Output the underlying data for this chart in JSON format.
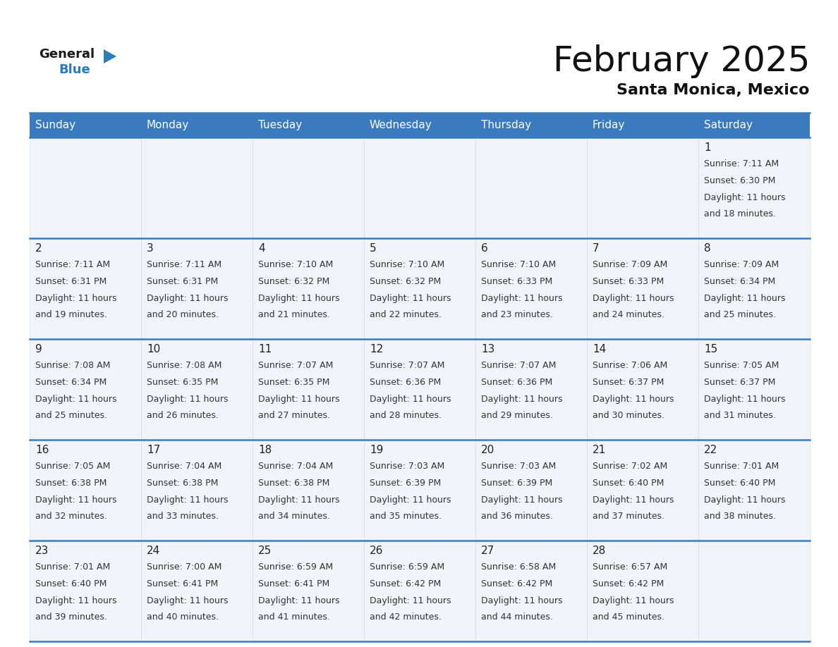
{
  "title": "February 2025",
  "subtitle": "Santa Monica, Mexico",
  "header_bg_color": "#3a7bbf",
  "header_text_color": "#ffffff",
  "cell_bg_odd": "#f0f4f8",
  "cell_bg_even": "#e8eef5",
  "border_color": "#3a7bbf",
  "day_num_color": "#222222",
  "cell_text_color": "#333333",
  "days_of_week": [
    "Sunday",
    "Monday",
    "Tuesday",
    "Wednesday",
    "Thursday",
    "Friday",
    "Saturday"
  ],
  "calendar_data": [
    [
      {
        "day": null,
        "sunrise": null,
        "sunset": null,
        "daylight_hours": null,
        "daylight_minutes": null
      },
      {
        "day": null,
        "sunrise": null,
        "sunset": null,
        "daylight_hours": null,
        "daylight_minutes": null
      },
      {
        "day": null,
        "sunrise": null,
        "sunset": null,
        "daylight_hours": null,
        "daylight_minutes": null
      },
      {
        "day": null,
        "sunrise": null,
        "sunset": null,
        "daylight_hours": null,
        "daylight_minutes": null
      },
      {
        "day": null,
        "sunrise": null,
        "sunset": null,
        "daylight_hours": null,
        "daylight_minutes": null
      },
      {
        "day": null,
        "sunrise": null,
        "sunset": null,
        "daylight_hours": null,
        "daylight_minutes": null
      },
      {
        "day": 1,
        "sunrise": "7:11 AM",
        "sunset": "6:30 PM",
        "daylight_hours": 11,
        "daylight_minutes": 18
      }
    ],
    [
      {
        "day": 2,
        "sunrise": "7:11 AM",
        "sunset": "6:31 PM",
        "daylight_hours": 11,
        "daylight_minutes": 19
      },
      {
        "day": 3,
        "sunrise": "7:11 AM",
        "sunset": "6:31 PM",
        "daylight_hours": 11,
        "daylight_minutes": 20
      },
      {
        "day": 4,
        "sunrise": "7:10 AM",
        "sunset": "6:32 PM",
        "daylight_hours": 11,
        "daylight_minutes": 21
      },
      {
        "day": 5,
        "sunrise": "7:10 AM",
        "sunset": "6:32 PM",
        "daylight_hours": 11,
        "daylight_minutes": 22
      },
      {
        "day": 6,
        "sunrise": "7:10 AM",
        "sunset": "6:33 PM",
        "daylight_hours": 11,
        "daylight_minutes": 23
      },
      {
        "day": 7,
        "sunrise": "7:09 AM",
        "sunset": "6:33 PM",
        "daylight_hours": 11,
        "daylight_minutes": 24
      },
      {
        "day": 8,
        "sunrise": "7:09 AM",
        "sunset": "6:34 PM",
        "daylight_hours": 11,
        "daylight_minutes": 25
      }
    ],
    [
      {
        "day": 9,
        "sunrise": "7:08 AM",
        "sunset": "6:34 PM",
        "daylight_hours": 11,
        "daylight_minutes": 25
      },
      {
        "day": 10,
        "sunrise": "7:08 AM",
        "sunset": "6:35 PM",
        "daylight_hours": 11,
        "daylight_minutes": 26
      },
      {
        "day": 11,
        "sunrise": "7:07 AM",
        "sunset": "6:35 PM",
        "daylight_hours": 11,
        "daylight_minutes": 27
      },
      {
        "day": 12,
        "sunrise": "7:07 AM",
        "sunset": "6:36 PM",
        "daylight_hours": 11,
        "daylight_minutes": 28
      },
      {
        "day": 13,
        "sunrise": "7:07 AM",
        "sunset": "6:36 PM",
        "daylight_hours": 11,
        "daylight_minutes": 29
      },
      {
        "day": 14,
        "sunrise": "7:06 AM",
        "sunset": "6:37 PM",
        "daylight_hours": 11,
        "daylight_minutes": 30
      },
      {
        "day": 15,
        "sunrise": "7:05 AM",
        "sunset": "6:37 PM",
        "daylight_hours": 11,
        "daylight_minutes": 31
      }
    ],
    [
      {
        "day": 16,
        "sunrise": "7:05 AM",
        "sunset": "6:38 PM",
        "daylight_hours": 11,
        "daylight_minutes": 32
      },
      {
        "day": 17,
        "sunrise": "7:04 AM",
        "sunset": "6:38 PM",
        "daylight_hours": 11,
        "daylight_minutes": 33
      },
      {
        "day": 18,
        "sunrise": "7:04 AM",
        "sunset": "6:38 PM",
        "daylight_hours": 11,
        "daylight_minutes": 34
      },
      {
        "day": 19,
        "sunrise": "7:03 AM",
        "sunset": "6:39 PM",
        "daylight_hours": 11,
        "daylight_minutes": 35
      },
      {
        "day": 20,
        "sunrise": "7:03 AM",
        "sunset": "6:39 PM",
        "daylight_hours": 11,
        "daylight_minutes": 36
      },
      {
        "day": 21,
        "sunrise": "7:02 AM",
        "sunset": "6:40 PM",
        "daylight_hours": 11,
        "daylight_minutes": 37
      },
      {
        "day": 22,
        "sunrise": "7:01 AM",
        "sunset": "6:40 PM",
        "daylight_hours": 11,
        "daylight_minutes": 38
      }
    ],
    [
      {
        "day": 23,
        "sunrise": "7:01 AM",
        "sunset": "6:40 PM",
        "daylight_hours": 11,
        "daylight_minutes": 39
      },
      {
        "day": 24,
        "sunrise": "7:00 AM",
        "sunset": "6:41 PM",
        "daylight_hours": 11,
        "daylight_minutes": 40
      },
      {
        "day": 25,
        "sunrise": "6:59 AM",
        "sunset": "6:41 PM",
        "daylight_hours": 11,
        "daylight_minutes": 41
      },
      {
        "day": 26,
        "sunrise": "6:59 AM",
        "sunset": "6:42 PM",
        "daylight_hours": 11,
        "daylight_minutes": 42
      },
      {
        "day": 27,
        "sunrise": "6:58 AM",
        "sunset": "6:42 PM",
        "daylight_hours": 11,
        "daylight_minutes": 44
      },
      {
        "day": 28,
        "sunrise": "6:57 AM",
        "sunset": "6:42 PM",
        "daylight_hours": 11,
        "daylight_minutes": 45
      },
      {
        "day": null,
        "sunrise": null,
        "sunset": null,
        "daylight_hours": null,
        "daylight_minutes": null
      }
    ]
  ],
  "logo_general_color": "#1a1a1a",
  "logo_blue_color": "#2a7bbf",
  "logo_triangle_color": "#2a7bbf",
  "title_fontsize": 36,
  "subtitle_fontsize": 16,
  "header_fontsize": 11,
  "day_num_fontsize": 11,
  "cell_fontsize": 9
}
